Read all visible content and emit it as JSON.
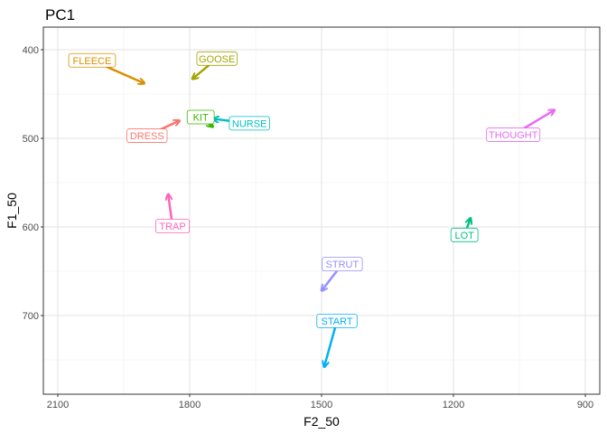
{
  "chart_data": {
    "type": "scatter",
    "title": "PC1",
    "xlabel": "F2_50",
    "ylabel": "F1_50",
    "xlim": [
      2130,
      870
    ],
    "x_reversed": true,
    "ylim": [
      775,
      375
    ],
    "y_reversed": true,
    "x_ticks": [
      "2100",
      "1800",
      "1500",
      "1200",
      "900"
    ],
    "y_ticks": [
      "400",
      "500",
      "600",
      "700"
    ],
    "grid": true,
    "legend": "none",
    "series": [
      {
        "name": "DRESS",
        "color": "#F8766D",
        "start": [
          1897,
          497
        ],
        "end": [
          1823,
          480
        ]
      },
      {
        "name": "FLEECE",
        "color": "#D89000",
        "start": [
          2022,
          412
        ],
        "end": [
          1903,
          438
        ]
      },
      {
        "name": "GOOSE",
        "color": "#A3A500",
        "start": [
          1738,
          410
        ],
        "end": [
          1794,
          433
        ]
      },
      {
        "name": "KIT",
        "color": "#39B600",
        "start": [
          1775,
          476
        ],
        "end": [
          1747,
          487
        ]
      },
      {
        "name": "LOT",
        "color": "#00BF7D",
        "start": [
          1175,
          609
        ],
        "end": [
          1161,
          590
        ]
      },
      {
        "name": "NURSE",
        "color": "#00BFC4",
        "start": [
          1664,
          483
        ],
        "end": [
          1747,
          478
        ]
      },
      {
        "name": "START",
        "color": "#00B0F6",
        "start": [
          1465,
          706
        ],
        "end": [
          1494,
          758
        ]
      },
      {
        "name": "STRUT",
        "color": "#9590FF",
        "start": [
          1453,
          642
        ],
        "end": [
          1500,
          672
        ]
      },
      {
        "name": "THOUGHT",
        "color": "#E76BF3",
        "start": [
          1064,
          496
        ],
        "end": [
          970,
          468
        ]
      },
      {
        "name": "TRAP",
        "color": "#FF62BC",
        "start": [
          1839,
          599
        ],
        "end": [
          1849,
          563
        ]
      }
    ]
  }
}
